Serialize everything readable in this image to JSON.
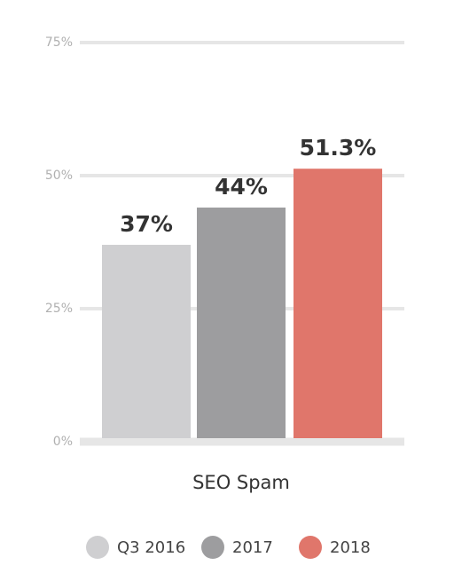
{
  "chart_data": {
    "type": "bar",
    "categories": [
      "SEO Spam"
    ],
    "series": [
      {
        "name": "Q3 2016",
        "color": "#cfcfd1",
        "values": [
          37
        ],
        "value_labels": [
          "37%"
        ]
      },
      {
        "name": "2017",
        "color": "#9d9d9f",
        "values": [
          44
        ],
        "value_labels": [
          "44%"
        ]
      },
      {
        "name": "2018",
        "color": "#e0766b",
        "values": [
          51.3
        ],
        "value_labels": [
          "51.3%"
        ]
      }
    ],
    "ylim": [
      0,
      75
    ],
    "yticks": [
      {
        "value": 0,
        "label": "0%"
      },
      {
        "value": 25,
        "label": "25%"
      },
      {
        "value": 50,
        "label": "50%"
      },
      {
        "value": 75,
        "label": "75%"
      }
    ],
    "grid": true,
    "legend": "bottom"
  }
}
